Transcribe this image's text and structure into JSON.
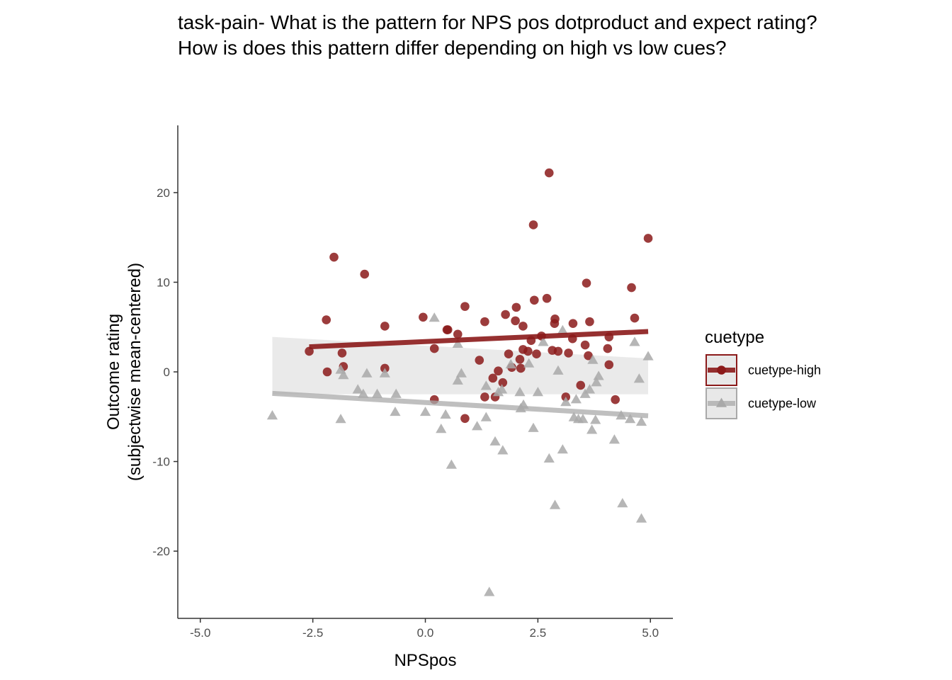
{
  "chart_data": {
    "type": "scatter",
    "title": "task-pain- What is the pattern for NPS pos dotproduct and expect rating?",
    "subtitle": "How is does this pattern differ depending on high vs low cues?",
    "xlabel": "NPSpos",
    "ylabel": "Outcome rating\n(subjectwise mean-centered)",
    "xlim": [
      -5.5,
      5.5
    ],
    "ylim": [
      -27.5,
      27.5
    ],
    "x_ticks": [
      "-5.0",
      "-2.5",
      "0.0",
      "2.5",
      "5.0"
    ],
    "y_ticks": [
      "-20",
      "-10",
      "0",
      "10",
      "20"
    ],
    "grid": false,
    "legend": {
      "title": "cuetype",
      "position": "right"
    },
    "series": [
      {
        "name": "cuetype-high",
        "color": "#8b1a1a",
        "marker": "circle",
        "fit": {
          "x": [
            -2.58,
            4.95
          ],
          "y": [
            2.8,
            4.5
          ]
        },
        "points": [
          [
            -2.58,
            2.3
          ],
          [
            -2.2,
            5.8
          ],
          [
            -2.18,
            0.0
          ],
          [
            -2.03,
            12.8
          ],
          [
            -1.85,
            2.1
          ],
          [
            -1.82,
            0.6
          ],
          [
            -1.35,
            10.9
          ],
          [
            -0.9,
            5.1
          ],
          [
            -0.9,
            0.4
          ],
          [
            -0.05,
            6.1
          ],
          [
            0.2,
            2.6
          ],
          [
            0.2,
            -3.1
          ],
          [
            0.48,
            4.7
          ],
          [
            0.5,
            4.7
          ],
          [
            0.72,
            4.2
          ],
          [
            0.88,
            7.3
          ],
          [
            0.88,
            -5.2
          ],
          [
            1.2,
            1.3
          ],
          [
            1.32,
            5.6
          ],
          [
            1.32,
            -2.8
          ],
          [
            1.5,
            -0.7
          ],
          [
            1.55,
            -2.8
          ],
          [
            1.62,
            0.1
          ],
          [
            1.72,
            -1.2
          ],
          [
            1.78,
            6.4
          ],
          [
            1.85,
            2.0
          ],
          [
            1.92,
            0.5
          ],
          [
            2.0,
            5.7
          ],
          [
            2.02,
            7.2
          ],
          [
            2.1,
            1.4
          ],
          [
            2.12,
            0.4
          ],
          [
            2.17,
            5.1
          ],
          [
            2.17,
            2.5
          ],
          [
            2.28,
            2.3
          ],
          [
            2.35,
            3.5
          ],
          [
            2.4,
            16.4
          ],
          [
            2.42,
            8.0
          ],
          [
            2.47,
            2.0
          ],
          [
            2.58,
            4.0
          ],
          [
            2.7,
            8.2
          ],
          [
            2.75,
            22.2
          ],
          [
            2.82,
            2.4
          ],
          [
            2.87,
            5.4
          ],
          [
            2.88,
            5.9
          ],
          [
            2.95,
            2.3
          ],
          [
            3.12,
            -2.8
          ],
          [
            3.18,
            2.1
          ],
          [
            3.27,
            3.7
          ],
          [
            3.28,
            5.4
          ],
          [
            3.45,
            -1.5
          ],
          [
            3.55,
            3.0
          ],
          [
            3.58,
            9.9
          ],
          [
            3.62,
            1.8
          ],
          [
            3.65,
            5.6
          ],
          [
            4.05,
            2.6
          ],
          [
            4.08,
            0.8
          ],
          [
            4.08,
            3.9
          ],
          [
            4.22,
            -3.1
          ],
          [
            4.58,
            9.4
          ],
          [
            4.65,
            6.0
          ],
          [
            4.95,
            14.9
          ]
        ]
      },
      {
        "name": "cuetype-low",
        "color": "#a9a9a9",
        "marker": "triangle",
        "fit": {
          "x": [
            -3.4,
            4.95
          ],
          "y": [
            -2.4,
            -4.9
          ]
        },
        "band": {
          "x": [
            -3.4,
            4.95
          ],
          "upper": [
            3.9,
            1.5
          ],
          "lower": [
            -2.5,
            -2.5
          ]
        },
        "points": [
          [
            -3.4,
            -4.9
          ],
          [
            -1.88,
            0.2
          ],
          [
            -1.88,
            -5.3
          ],
          [
            -1.82,
            -0.4
          ],
          [
            -1.5,
            -2.0
          ],
          [
            -1.38,
            -2.5
          ],
          [
            -1.3,
            -0.2
          ],
          [
            -1.07,
            -2.5
          ],
          [
            -0.9,
            -0.2
          ],
          [
            -0.67,
            -4.5
          ],
          [
            -0.65,
            -2.5
          ],
          [
            0.0,
            -4.5
          ],
          [
            0.2,
            6.0
          ],
          [
            0.35,
            -6.4
          ],
          [
            0.45,
            -4.8
          ],
          [
            0.58,
            -10.4
          ],
          [
            0.72,
            3.1
          ],
          [
            0.72,
            -1.0
          ],
          [
            0.8,
            -0.2
          ],
          [
            1.15,
            -6.1
          ],
          [
            1.35,
            -5.1
          ],
          [
            1.35,
            -1.6
          ],
          [
            1.42,
            -24.6
          ],
          [
            1.55,
            -7.8
          ],
          [
            1.62,
            -2.3
          ],
          [
            1.7,
            -2.0
          ],
          [
            1.72,
            -8.8
          ],
          [
            1.9,
            0.8
          ],
          [
            2.1,
            -2.3
          ],
          [
            2.12,
            -4.1
          ],
          [
            2.18,
            -3.7
          ],
          [
            2.3,
            0.9
          ],
          [
            2.4,
            -6.3
          ],
          [
            2.5,
            -2.3
          ],
          [
            2.62,
            3.3
          ],
          [
            2.75,
            -9.7
          ],
          [
            2.88,
            -14.9
          ],
          [
            2.95,
            0.1
          ],
          [
            3.05,
            -8.7
          ],
          [
            3.05,
            4.6
          ],
          [
            3.12,
            -3.4
          ],
          [
            3.3,
            -5.1
          ],
          [
            3.35,
            -3.1
          ],
          [
            3.4,
            -5.3
          ],
          [
            3.5,
            -5.3
          ],
          [
            3.55,
            -2.5
          ],
          [
            3.65,
            -2.0
          ],
          [
            3.7,
            -6.5
          ],
          [
            3.72,
            1.3
          ],
          [
            3.8,
            -1.2
          ],
          [
            3.85,
            -0.5
          ],
          [
            3.78,
            -5.4
          ],
          [
            4.2,
            -7.6
          ],
          [
            4.35,
            -4.9
          ],
          [
            4.38,
            -14.7
          ],
          [
            4.55,
            -5.3
          ],
          [
            4.65,
            3.3
          ],
          [
            4.75,
            -0.8
          ],
          [
            4.8,
            -16.4
          ],
          [
            4.8,
            -5.6
          ],
          [
            4.95,
            1.7
          ]
        ]
      }
    ]
  }
}
